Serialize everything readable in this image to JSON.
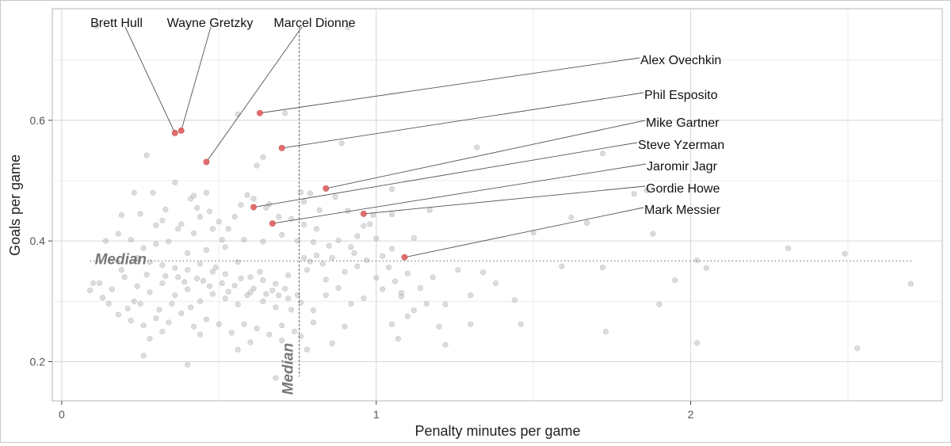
{
  "chart_data": {
    "type": "scatter",
    "title": "",
    "xlabel": "Penalty minutes per game",
    "ylabel": "Goals per game",
    "xlim": [
      -0.03,
      2.8
    ],
    "ylim": [
      0.135,
      0.785
    ],
    "xticks": [
      0,
      1,
      2
    ],
    "yticks": [
      0.2,
      0.4,
      0.6
    ],
    "grid": true,
    "median": {
      "x": 0.755,
      "y": 0.367,
      "label": "Median"
    },
    "highlight_color": "#e06060",
    "background_color": "#c0c0c0",
    "highlighted": [
      {
        "name": "Alex Ovechkin",
        "x": 0.63,
        "y": 0.612
      },
      {
        "name": "Phil Esposito",
        "x": 0.7,
        "y": 0.554
      },
      {
        "name": "Mike Gartner",
        "x": 0.84,
        "y": 0.487
      },
      {
        "name": "Steve Yzerman",
        "x": 0.61,
        "y": 0.456
      },
      {
        "name": "Jaromir Jagr",
        "x": 0.67,
        "y": 0.429
      },
      {
        "name": "Gordie Howe",
        "x": 0.96,
        "y": 0.445
      },
      {
        "name": "Mark Messier",
        "x": 1.09,
        "y": 0.373
      },
      {
        "name": "Brett Hull",
        "x": 0.36,
        "y": 0.579
      },
      {
        "name": "Wayne Gretzky",
        "x": 0.38,
        "y": 0.583
      },
      {
        "name": "Marcel Dionne",
        "x": 0.46,
        "y": 0.531
      }
    ],
    "points": [
      [
        0.11,
        0.756
      ],
      [
        0.91,
        0.754
      ],
      [
        0.56,
        0.61
      ],
      [
        0.71,
        0.612
      ],
      [
        0.89,
        0.562
      ],
      [
        0.62,
        0.525
      ],
      [
        0.64,
        0.539
      ],
      [
        0.27,
        0.542
      ],
      [
        1.32,
        0.555
      ],
      [
        0.36,
        0.497
      ],
      [
        0.23,
        0.48
      ],
      [
        0.29,
        0.48
      ],
      [
        0.41,
        0.47
      ],
      [
        0.42,
        0.475
      ],
      [
        0.46,
        0.48
      ],
      [
        0.59,
        0.476
      ],
      [
        0.76,
        0.481
      ],
      [
        0.79,
        0.479
      ],
      [
        1.05,
        0.486
      ],
      [
        0.19,
        0.443
      ],
      [
        0.25,
        0.445
      ],
      [
        0.32,
        0.434
      ],
      [
        0.44,
        0.44
      ],
      [
        0.55,
        0.44
      ],
      [
        0.66,
        0.461
      ],
      [
        0.77,
        0.465
      ],
      [
        0.82,
        0.451
      ],
      [
        0.87,
        0.473
      ],
      [
        0.91,
        0.45
      ],
      [
        0.99,
        0.443
      ],
      [
        1.05,
        0.444
      ],
      [
        1.17,
        0.451
      ],
      [
        1.72,
        0.545
      ],
      [
        1.82,
        0.478
      ],
      [
        1.86,
        0.484
      ],
      [
        1.62,
        0.439
      ],
      [
        1.5,
        0.414
      ],
      [
        1.67,
        0.43
      ],
      [
        1.12,
        0.405
      ],
      [
        1.05,
        0.387
      ],
      [
        0.97,
        0.368
      ],
      [
        0.93,
        0.38
      ],
      [
        0.85,
        0.392
      ],
      [
        0.8,
        0.398
      ],
      [
        0.7,
        0.41
      ],
      [
        0.64,
        0.399
      ],
      [
        0.58,
        0.402
      ],
      [
        0.52,
        0.39
      ],
      [
        0.46,
        0.385
      ],
      [
        0.4,
        0.38
      ],
      [
        0.34,
        0.399
      ],
      [
        0.3,
        0.395
      ],
      [
        0.26,
        0.388
      ],
      [
        0.22,
        0.402
      ],
      [
        0.18,
        0.412
      ],
      [
        0.14,
        0.4
      ],
      [
        0.48,
        0.42
      ],
      [
        0.5,
        0.432
      ],
      [
        0.38,
        0.428
      ],
      [
        0.42,
        0.413
      ],
      [
        1.88,
        0.412
      ],
      [
        2.31,
        0.388
      ],
      [
        2.49,
        0.379
      ],
      [
        0.24,
        0.372
      ],
      [
        0.28,
        0.365
      ],
      [
        0.32,
        0.36
      ],
      [
        0.36,
        0.355
      ],
      [
        0.4,
        0.352
      ],
      [
        0.44,
        0.362
      ],
      [
        0.48,
        0.349
      ],
      [
        0.52,
        0.345
      ],
      [
        0.56,
        0.365
      ],
      [
        0.6,
        0.34
      ],
      [
        0.64,
        0.335
      ],
      [
        0.68,
        0.329
      ],
      [
        0.72,
        0.343
      ],
      [
        0.78,
        0.352
      ],
      [
        0.84,
        0.336
      ],
      [
        0.9,
        0.349
      ],
      [
        0.94,
        0.358
      ],
      [
        1.0,
        0.339
      ],
      [
        1.1,
        0.346
      ],
      [
        1.18,
        0.34
      ],
      [
        1.26,
        0.352
      ],
      [
        1.34,
        0.348
      ],
      [
        1.59,
        0.358
      ],
      [
        1.72,
        0.356
      ],
      [
        1.95,
        0.335
      ],
      [
        2.02,
        0.368
      ],
      [
        2.05,
        0.355
      ],
      [
        0.12,
        0.33
      ],
      [
        0.16,
        0.32
      ],
      [
        0.2,
        0.34
      ],
      [
        0.24,
        0.325
      ],
      [
        0.28,
        0.315
      ],
      [
        0.32,
        0.33
      ],
      [
        0.36,
        0.31
      ],
      [
        0.4,
        0.32
      ],
      [
        0.44,
        0.3
      ],
      [
        0.48,
        0.312
      ],
      [
        0.52,
        0.305
      ],
      [
        0.56,
        0.295
      ],
      [
        0.6,
        0.315
      ],
      [
        0.64,
        0.3
      ],
      [
        0.68,
        0.29
      ],
      [
        0.72,
        0.305
      ],
      [
        0.76,
        0.298
      ],
      [
        0.8,
        0.285
      ],
      [
        0.84,
        0.31
      ],
      [
        0.88,
        0.322
      ],
      [
        0.92,
        0.296
      ],
      [
        0.96,
        0.305
      ],
      [
        1.02,
        0.32
      ],
      [
        1.08,
        0.308
      ],
      [
        1.14,
        0.322
      ],
      [
        1.22,
        0.295
      ],
      [
        1.3,
        0.31
      ],
      [
        1.38,
        0.33
      ],
      [
        1.44,
        0.302
      ],
      [
        1.9,
        0.295
      ],
      [
        2.7,
        0.329
      ],
      [
        0.18,
        0.278
      ],
      [
        0.22,
        0.268
      ],
      [
        0.26,
        0.26
      ],
      [
        0.3,
        0.272
      ],
      [
        0.34,
        0.265
      ],
      [
        0.38,
        0.28
      ],
      [
        0.42,
        0.258
      ],
      [
        0.46,
        0.27
      ],
      [
        0.5,
        0.262
      ],
      [
        0.54,
        0.248
      ],
      [
        0.58,
        0.262
      ],
      [
        0.62,
        0.255
      ],
      [
        0.66,
        0.245
      ],
      [
        0.7,
        0.26
      ],
      [
        0.74,
        0.25
      ],
      [
        0.8,
        0.265
      ],
      [
        0.9,
        0.258
      ],
      [
        1.05,
        0.262
      ],
      [
        1.1,
        0.275
      ],
      [
        1.2,
        0.258
      ],
      [
        1.3,
        0.262
      ],
      [
        1.46,
        0.262
      ],
      [
        1.73,
        0.25
      ],
      [
        0.28,
        0.238
      ],
      [
        0.32,
        0.25
      ],
      [
        0.44,
        0.245
      ],
      [
        0.56,
        0.22
      ],
      [
        0.6,
        0.232
      ],
      [
        0.7,
        0.235
      ],
      [
        0.76,
        0.242
      ],
      [
        0.86,
        0.23
      ],
      [
        1.07,
        0.238
      ],
      [
        1.22,
        0.228
      ],
      [
        0.26,
        0.21
      ],
      [
        0.4,
        0.195
      ],
      [
        0.78,
        0.22
      ],
      [
        2.02,
        0.231
      ],
      [
        2.53,
        0.222
      ],
      [
        0.68,
        0.173
      ],
      [
        0.09,
        0.318
      ],
      [
        0.1,
        0.33
      ],
      [
        0.13,
        0.306
      ],
      [
        0.15,
        0.296
      ],
      [
        0.19,
        0.352
      ],
      [
        0.21,
        0.288
      ],
      [
        0.23,
        0.3
      ],
      [
        0.25,
        0.296
      ],
      [
        0.27,
        0.344
      ],
      [
        0.31,
        0.286
      ],
      [
        0.33,
        0.342
      ],
      [
        0.35,
        0.296
      ],
      [
        0.37,
        0.34
      ],
      [
        0.39,
        0.332
      ],
      [
        0.41,
        0.29
      ],
      [
        0.43,
        0.338
      ],
      [
        0.45,
        0.334
      ],
      [
        0.47,
        0.325
      ],
      [
        0.49,
        0.356
      ],
      [
        0.51,
        0.33
      ],
      [
        0.53,
        0.316
      ],
      [
        0.55,
        0.326
      ],
      [
        0.57,
        0.338
      ],
      [
        0.59,
        0.31
      ],
      [
        0.61,
        0.321
      ],
      [
        0.63,
        0.349
      ],
      [
        0.65,
        0.312
      ],
      [
        0.67,
        0.318
      ],
      [
        0.69,
        0.31
      ],
      [
        0.71,
        0.321
      ],
      [
        0.73,
        0.286
      ],
      [
        0.75,
        0.31
      ],
      [
        0.77,
        0.372
      ],
      [
        0.79,
        0.366
      ],
      [
        0.81,
        0.376
      ],
      [
        0.83,
        0.362
      ],
      [
        0.86,
        0.372
      ],
      [
        0.88,
        0.401
      ],
      [
        0.92,
        0.39
      ],
      [
        0.94,
        0.408
      ],
      [
        0.96,
        0.425
      ],
      [
        0.98,
        0.428
      ],
      [
        1.0,
        0.404
      ],
      [
        1.02,
        0.375
      ],
      [
        1.04,
        0.356
      ],
      [
        1.06,
        0.333
      ],
      [
        1.08,
        0.314
      ],
      [
        1.12,
        0.285
      ],
      [
        1.16,
        0.296
      ],
      [
        0.3,
        0.426
      ],
      [
        0.33,
        0.452
      ],
      [
        0.37,
        0.42
      ],
      [
        0.43,
        0.455
      ],
      [
        0.47,
        0.449
      ],
      [
        0.51,
        0.402
      ],
      [
        0.53,
        0.42
      ],
      [
        0.57,
        0.46
      ],
      [
        0.61,
        0.47
      ],
      [
        0.65,
        0.455
      ],
      [
        0.69,
        0.44
      ],
      [
        0.73,
        0.437
      ],
      [
        0.75,
        0.4
      ],
      [
        0.77,
        0.427
      ],
      [
        0.81,
        0.42
      ]
    ]
  }
}
